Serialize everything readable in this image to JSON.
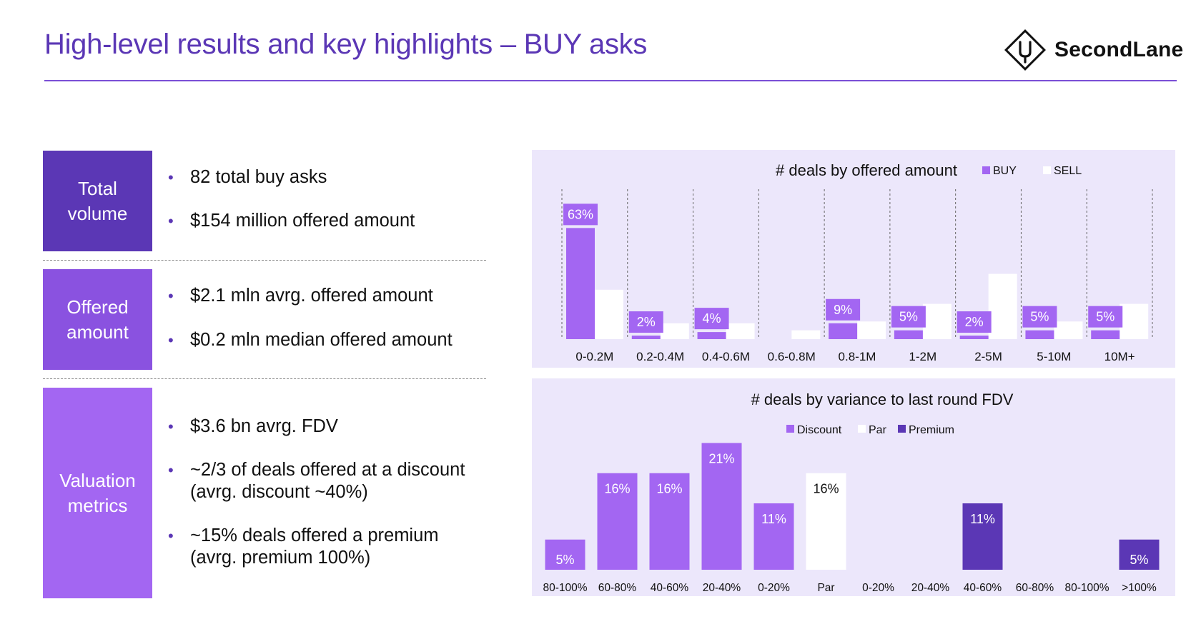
{
  "header": {
    "title": "High-level results and key highlights – BUY asks",
    "logo_text": "SecondLane"
  },
  "sections": [
    {
      "label": "Total volume",
      "bullets": [
        "82 total buy asks",
        "$154 million offered amount"
      ]
    },
    {
      "label": "Offered amount",
      "bullets": [
        "$2.1 mln avrg. offered amount",
        "$0.2 mln median offered amount"
      ]
    },
    {
      "label": "Valuation metrics",
      "bullets": [
        "$3.6 bn avrg. FDV",
        "~2/3 of deals offered at a discount (avrg. discount ~40%)",
        "~15% deals offered a premium (avrg. premium 100%)"
      ]
    }
  ],
  "colors": {
    "brand": "#5b37b5",
    "box1": "#5b37b5",
    "box2": "#8a52e0",
    "box3": "#a366f2",
    "buy": "#a366f2",
    "sell": "#ffffff",
    "discount": "#a366f2",
    "par": "#ffffff",
    "premium": "#5b37b5",
    "panel_bg": "#ece7fb"
  },
  "chart_data": [
    {
      "type": "bar",
      "title": "# deals by offered amount",
      "categories": [
        "0-0.2M",
        "0.2-0.4M",
        "0.4-0.6M",
        "0.6-0.8M",
        "0.8-1M",
        "1-2M",
        "2-5M",
        "5-10M",
        "10M+"
      ],
      "series": [
        {
          "name": "BUY",
          "values": [
            63,
            2,
            4,
            0,
            9,
            5,
            2,
            5,
            5
          ]
        },
        {
          "name": "SELL",
          "values": [
            28,
            9,
            9,
            5,
            10,
            20,
            37,
            10,
            20
          ]
        }
      ],
      "data_labels": [
        "63%",
        "2%",
        "4%",
        "",
        "9%",
        "5%",
        "2%",
        "5%",
        "5%"
      ],
      "legend": "top-right",
      "ylim": [
        0,
        85
      ],
      "xlabel": "",
      "ylabel": ""
    },
    {
      "type": "bar",
      "title": "# deals by variance to last round FDV",
      "categories": [
        "80-100%",
        "60-80%",
        "40-60%",
        "20-40%",
        "0-20%",
        "Par",
        "0-20%",
        "20-40%",
        "40-60%",
        "60-80%",
        "80-100%",
        ">100%"
      ],
      "series": [
        {
          "name": "Discount",
          "values": [
            5,
            16,
            16,
            21,
            11,
            0,
            0,
            0,
            0,
            0,
            0,
            0
          ]
        },
        {
          "name": "Par",
          "values": [
            0,
            0,
            0,
            0,
            0,
            16,
            0,
            0,
            0,
            0,
            0,
            0
          ]
        },
        {
          "name": "Premium",
          "values": [
            0,
            0,
            0,
            0,
            0,
            0,
            0,
            0,
            11,
            0,
            0,
            5
          ]
        }
      ],
      "data_labels": [
        "5%",
        "16%",
        "16%",
        "21%",
        "11%",
        "16%",
        "",
        "",
        "11%",
        "",
        "",
        "5%"
      ],
      "legend": "top-center",
      "ylim": [
        0,
        22
      ],
      "xlabel": "",
      "ylabel": ""
    }
  ]
}
